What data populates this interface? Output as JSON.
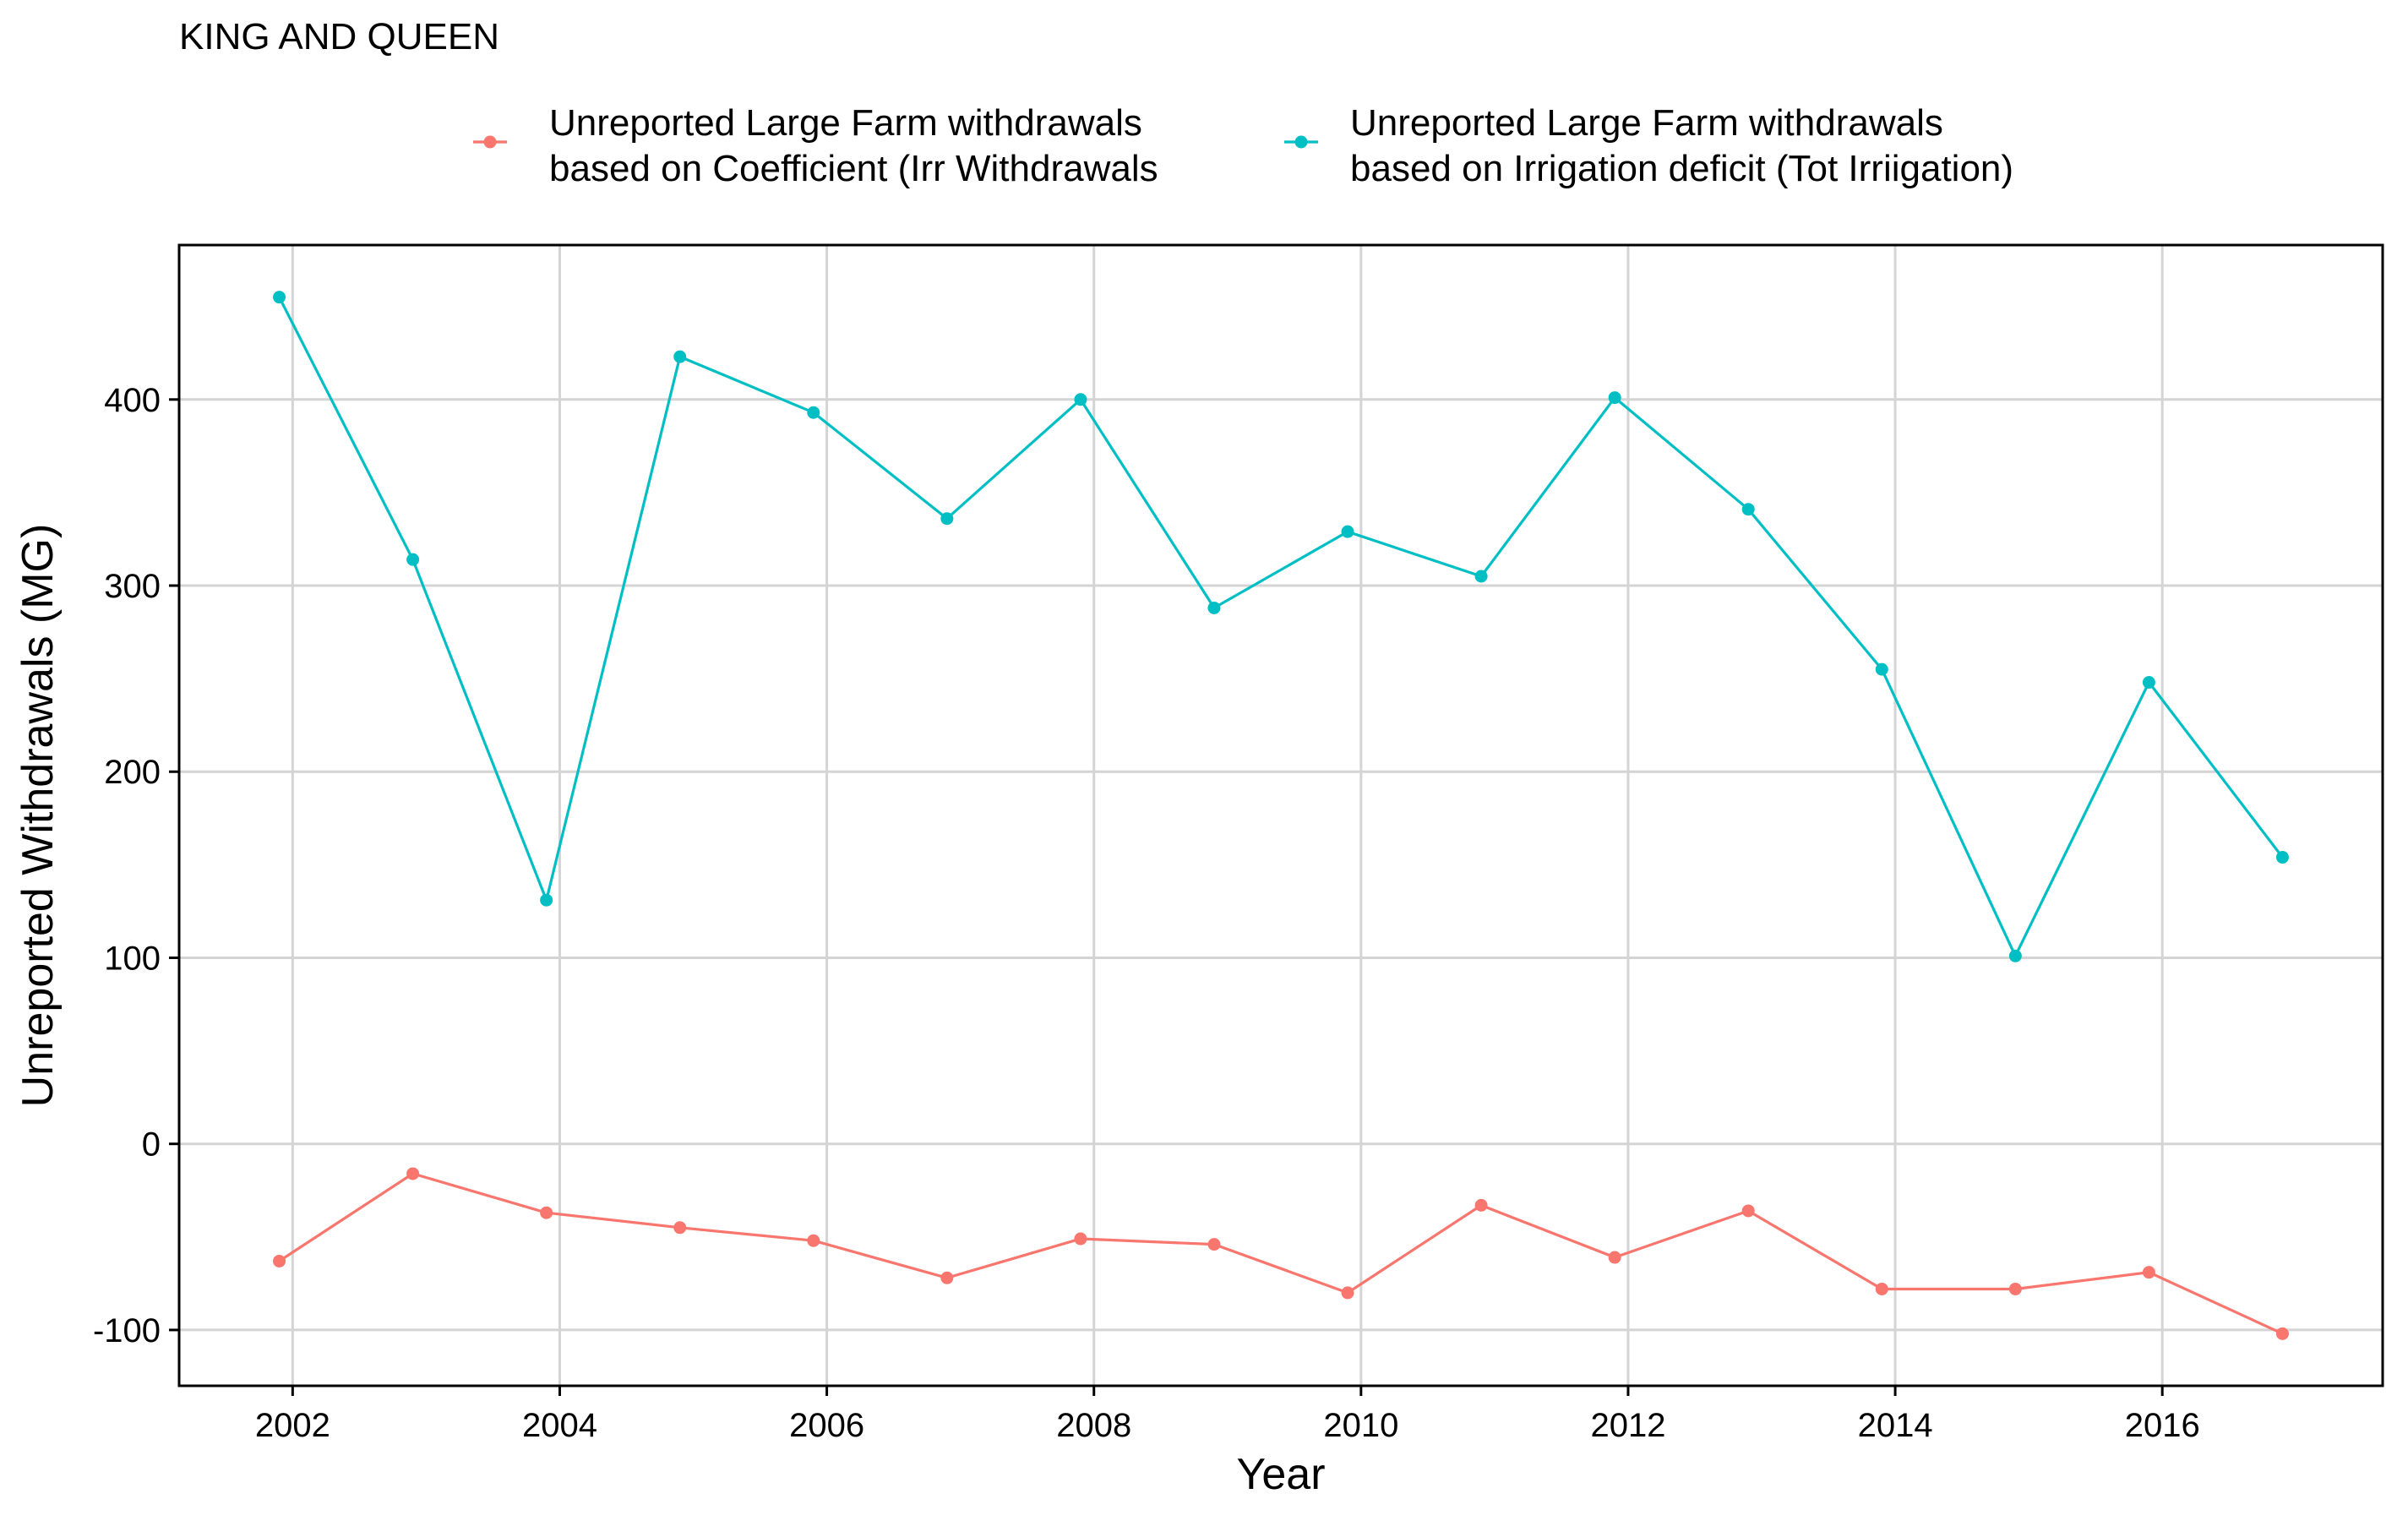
{
  "chart_data": {
    "type": "line",
    "title": "KING AND QUEEN",
    "xlabel": "Year",
    "ylabel": "Unreported Withdrawals (MG)",
    "x": [
      2001.9,
      2002.9,
      2003.9,
      2004.9,
      2005.9,
      2006.9,
      2007.9,
      2008.9,
      2009.9,
      2010.9,
      2011.9,
      2012.9,
      2013.9,
      2014.9,
      2015.9,
      2016.9
    ],
    "x_ticks": [
      2002,
      2004,
      2006,
      2008,
      2010,
      2012,
      2014,
      2016
    ],
    "x_tick_labels": [
      "2002",
      "2004",
      "2006",
      "2008",
      "2010",
      "2012",
      "2014",
      "2016"
    ],
    "xlim": [
      2001.15,
      2017.65
    ],
    "y_ticks": [
      -100,
      0,
      100,
      200,
      300,
      400
    ],
    "y_tick_labels": [
      "-100",
      "0",
      "100",
      "200",
      "300",
      "400"
    ],
    "ylim": [
      -130,
      483
    ],
    "grid": true,
    "legend_position": "top",
    "series": [
      {
        "name": "Unreported Large Farm withdrawals\nbased on Coefficient (Irr Withdrawals",
        "color": "#F8766D",
        "values": [
          -63,
          -16,
          -37,
          -45,
          -52,
          -72,
          -51,
          -54,
          -80,
          -33,
          -61,
          -36,
          -78,
          -78,
          -69,
          -102
        ]
      },
      {
        "name": "Unreported Large Farm withdrawals\nbased on Irrigation deficit (Tot Irriigation)",
        "color": "#00BFC4",
        "values": [
          455,
          314,
          131,
          423,
          393,
          336,
          400,
          288,
          329,
          305,
          401,
          341,
          255,
          101,
          248,
          154
        ]
      }
    ]
  }
}
